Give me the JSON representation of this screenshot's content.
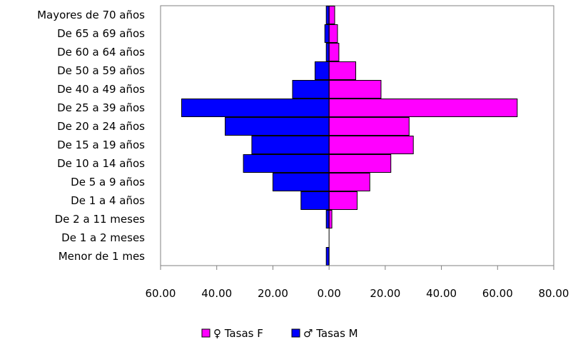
{
  "chart_data": {
    "type": "bar",
    "orientation": "horizontal",
    "layout": "population-pyramid",
    "categories": [
      "Mayores de 70 años",
      "De 65 a 69 años",
      "De 60 a 64 años",
      "De 50 a 59 años",
      "De 40 a 49 años",
      "De 25 a 39 años",
      "De 20 a 24 años",
      "De 15 a 19 años",
      "De 10 a 14 años",
      "De 5 a 9 años",
      "De 1 a 4 años",
      "De 2 a 11 meses",
      "De 1 a 2 meses",
      "Menor de 1 mes"
    ],
    "series": [
      {
        "name": "♀ Tasas F",
        "color": "#ff00ff",
        "values": [
          2.0,
          3.0,
          3.5,
          9.5,
          18.5,
          67.0,
          28.5,
          30.0,
          22.0,
          14.5,
          10.0,
          1.0,
          0.0,
          0.0
        ]
      },
      {
        "name": "♂ Tasas M",
        "color": "#0000ff",
        "values": [
          1.0,
          1.5,
          1.0,
          5.0,
          13.0,
          52.5,
          37.0,
          27.5,
          30.5,
          20.0,
          10.0,
          1.0,
          0.0,
          1.0
        ]
      }
    ],
    "male_plotted_negative": true,
    "xlim": [
      -60,
      80
    ],
    "xticks": [
      {
        "value": -60,
        "label": "60.00"
      },
      {
        "value": -40,
        "label": "40.00"
      },
      {
        "value": -20,
        "label": "20.00"
      },
      {
        "value": 0,
        "label": "0.00"
      },
      {
        "value": 20,
        "label": "20.00"
      },
      {
        "value": 40,
        "label": "40.00"
      },
      {
        "value": 60,
        "label": "60.00"
      },
      {
        "value": 80,
        "label": "80.00"
      }
    ],
    "grid": false,
    "legend_position": "bottom",
    "title": "",
    "xlabel": "",
    "ylabel": ""
  }
}
